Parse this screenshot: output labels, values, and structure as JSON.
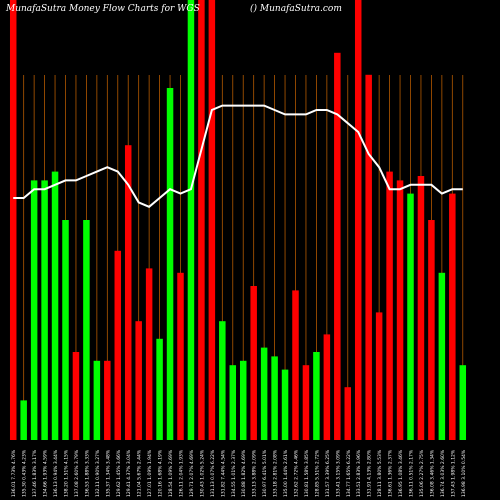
{
  "header": {
    "left_title": "MunafaSutra  Money  Flow  Charts for WGS",
    "right_title": "() MunafaSutra.com"
  },
  "colors": {
    "background": "#000000",
    "up_bar": "#00ff00",
    "down_bar": "#ff0000",
    "money_flow_line": "#ffffff",
    "gridline": "#b35900",
    "label_text": "#ffffff"
  },
  "chart_data": {
    "type": "bar",
    "title": "MunafaSutra  Money  Flow  Charts for WGS",
    "subtitle": "() MunafaSutra.com",
    "xlabel": "",
    "ylabel": "",
    "ylim": [
      0,
      100
    ],
    "grid": true,
    "categories": [
      "136.01 7.73% 4.76%",
      "135.30 0.43% 4.23%",
      "137.46 1.83% 3.17%",
      "134.66 1.93% 4.59%",
      "136.13 0.94% 3.44%",
      "138.20 1.51% 4.15%",
      "137.08 2.60% 3.79%",
      "136.53 1.88% 3.33%",
      "132.11 0.90% 3.27%",
      "135.37 1.34% 3.48%",
      "129.62 1.45% 3.66%",
      "129.41 4.37% 3.04%",
      "121.04 5.67% 2.44%",
      "127.01 1.09% 1.94%",
      "120.16 1.68% 4.19%",
      "128.54 1.09% 2.69%",
      "126.11 2.04% 1.93%",
      "129.71 2.07% 4.69%",
      "130.43 1.02% 5.24%",
      "131.13 0.07% 6.22%",
      "131.82 7.44% 4.54%",
      "134.55 1.01% 2.37%",
      "130.88 1.82% 4.69%",
      "133.13 3.88% 2.09%",
      "130.97 6.41% 5.01%",
      "133.18 2.81% 2.08%",
      "135.00 1.44% 2.61%",
      "132.62 2.72% 4.46%",
      "130.81 1.58% 3.85%",
      "128.85 5.51% 2.72%",
      "131.57 3.39% 6.25%",
      "133.41 3.15% 3.09%",
      "134.77 1.65% 6.22%",
      "133.51 2.83% 3.96%",
      "131.91 4.13% 2.80%",
      "128.11 3.80% 5.53%",
      "136.61 1.36% 2.37%",
      "136.95 1.08% 3.46%",
      "136.11 0.51% 2.17%",
      "135.06 2.27% 2.75%",
      "136.08 3.46% 1.34%",
      "136.74 3.03% 2.60%",
      "137.43 1.98% 1.12%",
      "136.98 3.10% 0.54%"
    ],
    "series": [
      {
        "colors_by_bar": [
          "red",
          "green",
          "green",
          "green",
          "green",
          "green",
          "red",
          "green",
          "green",
          "red",
          "red",
          "red",
          "red",
          "red",
          "green",
          "green",
          "red",
          "green",
          "red",
          "red",
          "green",
          "green",
          "green",
          "red",
          "green",
          "green",
          "green",
          "red",
          "red",
          "green",
          "red",
          "red",
          "red",
          "red",
          "red",
          "red",
          "red",
          "red",
          "green",
          "red",
          "red",
          "green",
          "red",
          "green"
        ],
        "values": [
          100,
          9,
          59,
          59,
          61,
          50,
          20,
          50,
          18,
          18,
          43,
          67,
          27,
          39,
          23,
          80,
          38,
          100,
          100,
          100,
          27,
          17,
          18,
          35,
          21,
          19,
          16,
          34,
          17,
          20,
          24,
          88,
          12,
          100,
          83,
          29,
          61,
          59,
          56,
          60,
          50,
          38,
          56,
          17
        ]
      }
    ],
    "line": {
      "name": "",
      "values": [
        55,
        55,
        57,
        57,
        58,
        59,
        59,
        60,
        61,
        62,
        61,
        58,
        54,
        53,
        55,
        57,
        56,
        57,
        66,
        75,
        76,
        76,
        76,
        76,
        76,
        75,
        74,
        74,
        74,
        75,
        75,
        74,
        72,
        70,
        65,
        62,
        57,
        57,
        58,
        58,
        58,
        56,
        57,
        57
      ]
    }
  }
}
